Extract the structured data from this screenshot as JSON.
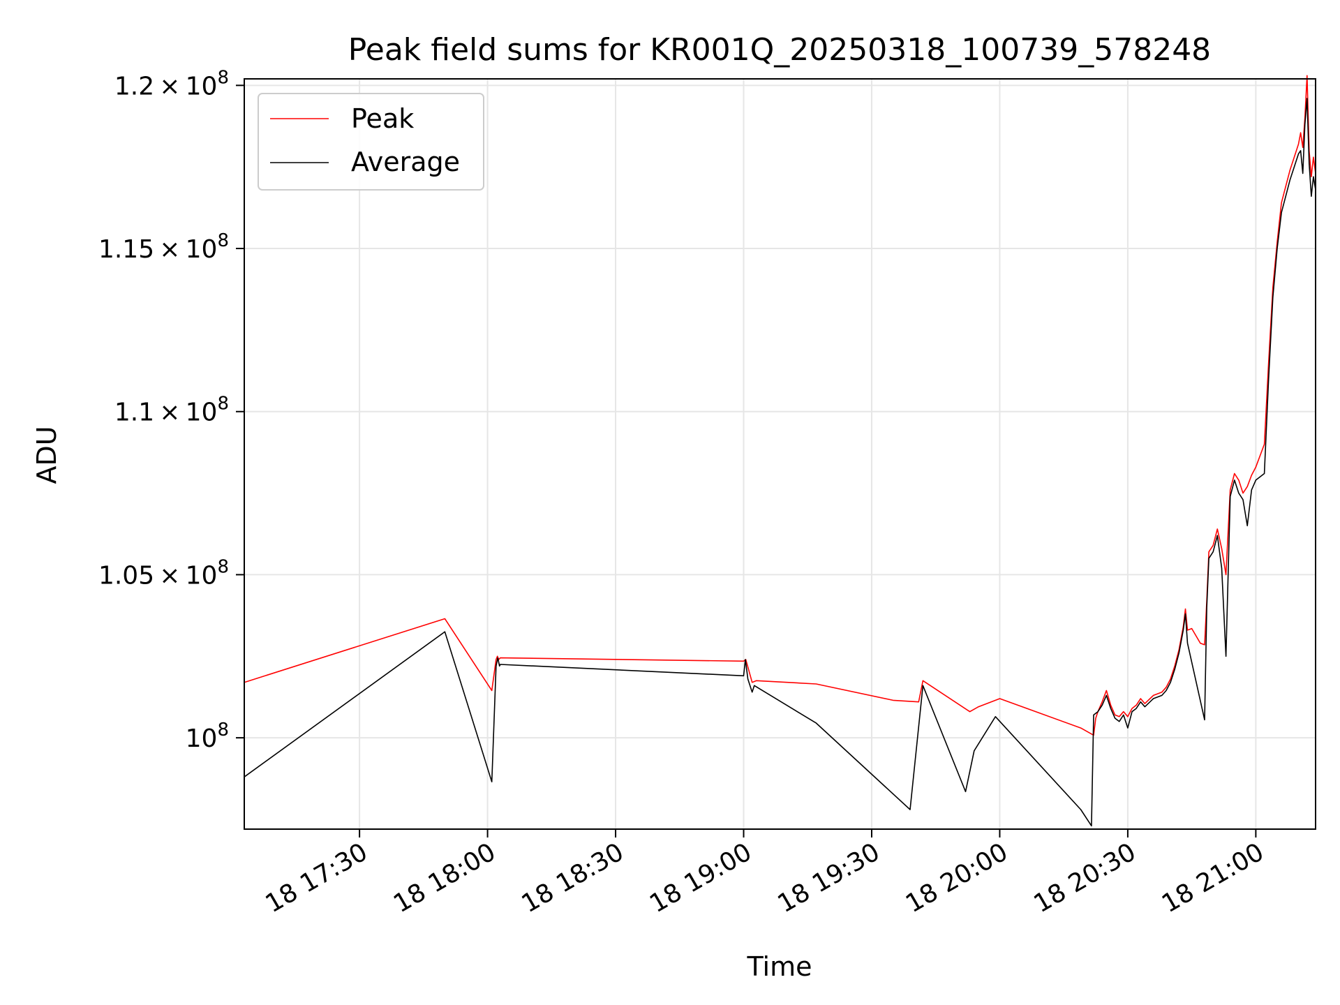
{
  "chart_data": {
    "type": "line",
    "title": "Peak field sums for KR001Q_20250318_100739_578248",
    "xlabel": "Time",
    "ylabel": "ADU",
    "x_range": [
      "18 17:03",
      "18 21:14"
    ],
    "ylim": [
      97200000,
      120200000
    ],
    "x_ticks": [
      {
        "time": "17:30",
        "label": "18 17:30"
      },
      {
        "time": "18:00",
        "label": "18 18:00"
      },
      {
        "time": "18:30",
        "label": "18 18:30"
      },
      {
        "time": "19:00",
        "label": "18 19:00"
      },
      {
        "time": "19:30",
        "label": "18 19:30"
      },
      {
        "time": "20:00",
        "label": "18 20:00"
      },
      {
        "time": "20:30",
        "label": "18 20:30"
      },
      {
        "time": "21:00",
        "label": "18 21:00"
      }
    ],
    "y_ticks": [
      {
        "value": 100000000,
        "mantissa": "",
        "exp": "8"
      },
      {
        "value": 105000000,
        "mantissa": "1.05",
        "exp": "8"
      },
      {
        "value": 110000000,
        "mantissa": "1.1",
        "exp": "8"
      },
      {
        "value": 115000000,
        "mantissa": "1.15",
        "exp": "8"
      },
      {
        "value": 120000000,
        "mantissa": "1.2",
        "exp": "8"
      }
    ],
    "grid": true,
    "legend_position": "upper-left",
    "series": [
      {
        "name": "Peak",
        "color": "#ff0000",
        "points": [
          [
            "17:03",
            101700000
          ],
          [
            "17:50",
            103650000
          ],
          [
            "18:01",
            101450000
          ],
          [
            "18:02",
            102400000
          ],
          [
            "18:02.3",
            102500000
          ],
          [
            "18:02.6",
            102400000
          ],
          [
            "18:03",
            102450000
          ],
          [
            "19:00",
            102350000
          ],
          [
            "19:00.5",
            102400000
          ],
          [
            "19:02",
            101700000
          ],
          [
            "19:03",
            101750000
          ],
          [
            "19:17",
            101650000
          ],
          [
            "19:35",
            101150000
          ],
          [
            "19:41",
            101100000
          ],
          [
            "19:42",
            101750000
          ],
          [
            "19:53",
            100800000
          ],
          [
            "19:55",
            100950000
          ],
          [
            "20:00",
            101200000
          ],
          [
            "20:19",
            100300000
          ],
          [
            "20:22",
            100080000
          ],
          [
            "20:22.5",
            100600000
          ],
          [
            "20:23",
            100800000
          ],
          [
            "20:24",
            101100000
          ],
          [
            "20:25",
            101450000
          ],
          [
            "20:26",
            101000000
          ],
          [
            "20:27",
            100700000
          ],
          [
            "20:28",
            100650000
          ],
          [
            "20:29",
            100800000
          ],
          [
            "20:30",
            100650000
          ],
          [
            "20:31",
            100900000
          ],
          [
            "20:32",
            101000000
          ],
          [
            "20:33",
            101200000
          ],
          [
            "20:34",
            101050000
          ],
          [
            "20:36",
            101300000
          ],
          [
            "20:38",
            101400000
          ],
          [
            "20:39",
            101550000
          ],
          [
            "20:40",
            101800000
          ],
          [
            "20:41",
            102200000
          ],
          [
            "20:42",
            102700000
          ],
          [
            "20:43",
            103400000
          ],
          [
            "20:43.5",
            103950000
          ],
          [
            "20:44",
            103300000
          ],
          [
            "20:45",
            103350000
          ],
          [
            "20:47",
            102900000
          ],
          [
            "20:48",
            102850000
          ],
          [
            "20:48.5",
            104200000
          ],
          [
            "20:49",
            105700000
          ],
          [
            "20:50",
            105900000
          ],
          [
            "20:51",
            106400000
          ],
          [
            "20:52",
            105800000
          ],
          [
            "20:53",
            105000000
          ],
          [
            "20:54",
            107600000
          ],
          [
            "20:55",
            108100000
          ],
          [
            "20:56",
            107900000
          ],
          [
            "20:57",
            107500000
          ],
          [
            "20:58",
            107700000
          ],
          [
            "20:59",
            108050000
          ],
          [
            "21:00",
            108300000
          ],
          [
            "21:02",
            109000000
          ],
          [
            "21:03",
            111500000
          ],
          [
            "21:04",
            113800000
          ],
          [
            "21:05",
            115200000
          ],
          [
            "21:06",
            116400000
          ],
          [
            "21:07",
            116900000
          ],
          [
            "21:08",
            117400000
          ],
          [
            "21:09",
            117800000
          ],
          [
            "21:10",
            118200000
          ],
          [
            "21:10.5",
            118550000
          ],
          [
            "21:11",
            118100000
          ],
          [
            "21:11.5",
            119000000
          ],
          [
            "21:12",
            120300000
          ],
          [
            "21:12.5",
            118000000
          ],
          [
            "21:13",
            117200000
          ],
          [
            "21:13.5",
            117800000
          ],
          [
            "21:14",
            117300000
          ]
        ]
      },
      {
        "name": "Average",
        "color": "#000000",
        "points": [
          [
            "17:03",
            98800000
          ],
          [
            "17:50",
            103250000
          ],
          [
            "18:01",
            98650000
          ],
          [
            "18:02",
            102200000
          ],
          [
            "18:02.4",
            102450000
          ],
          [
            "18:02.8",
            102200000
          ],
          [
            "18:03",
            102250000
          ],
          [
            "19:00",
            101900000
          ],
          [
            "19:00.4",
            102400000
          ],
          [
            "19:01",
            101800000
          ],
          [
            "19:02",
            101400000
          ],
          [
            "19:02.5",
            101600000
          ],
          [
            "19:17",
            100450000
          ],
          [
            "19:39",
            97800000
          ],
          [
            "19:42",
            101600000
          ],
          [
            "19:52",
            98350000
          ],
          [
            "19:54",
            99600000
          ],
          [
            "19:59",
            100650000
          ],
          [
            "20:19",
            97800000
          ],
          [
            "20:21.5",
            97300000
          ],
          [
            "20:22",
            100700000
          ],
          [
            "20:23",
            100800000
          ],
          [
            "20:24",
            101000000
          ],
          [
            "20:25",
            101300000
          ],
          [
            "20:26",
            100900000
          ],
          [
            "20:27",
            100600000
          ],
          [
            "20:28",
            100500000
          ],
          [
            "20:29",
            100700000
          ],
          [
            "20:30",
            100300000
          ],
          [
            "20:31",
            100800000
          ],
          [
            "20:32",
            100900000
          ],
          [
            "20:33",
            101100000
          ],
          [
            "20:34",
            100950000
          ],
          [
            "20:36",
            101200000
          ],
          [
            "20:38",
            101300000
          ],
          [
            "20:39",
            101450000
          ],
          [
            "20:40",
            101700000
          ],
          [
            "20:41",
            102100000
          ],
          [
            "20:42",
            102600000
          ],
          [
            "20:43",
            103300000
          ],
          [
            "20:43.5",
            103800000
          ],
          [
            "20:44",
            102900000
          ],
          [
            "20:48",
            100550000
          ],
          [
            "20:48.5",
            104000000
          ],
          [
            "20:49",
            105500000
          ],
          [
            "20:50",
            105700000
          ],
          [
            "20:51",
            106200000
          ],
          [
            "20:52",
            105200000
          ],
          [
            "20:53",
            102500000
          ],
          [
            "20:54",
            107400000
          ],
          [
            "20:55",
            107900000
          ],
          [
            "20:56",
            107500000
          ],
          [
            "20:57",
            107300000
          ],
          [
            "20:58",
            106500000
          ],
          [
            "20:59",
            107600000
          ],
          [
            "21:00",
            107900000
          ],
          [
            "21:02",
            108100000
          ],
          [
            "21:03",
            111000000
          ],
          [
            "21:04",
            113500000
          ],
          [
            "21:05",
            115000000
          ],
          [
            "21:06",
            116100000
          ],
          [
            "21:07",
            116600000
          ],
          [
            "21:08",
            117100000
          ],
          [
            "21:09",
            117500000
          ],
          [
            "21:10",
            117900000
          ],
          [
            "21:10.5",
            118000000
          ],
          [
            "21:11",
            117300000
          ],
          [
            "21:11.5",
            118800000
          ],
          [
            "21:12",
            119600000
          ],
          [
            "21:12.5",
            117600000
          ],
          [
            "21:13",
            116600000
          ],
          [
            "21:13.5",
            117200000
          ],
          [
            "21:14",
            116800000
          ]
        ]
      }
    ]
  }
}
